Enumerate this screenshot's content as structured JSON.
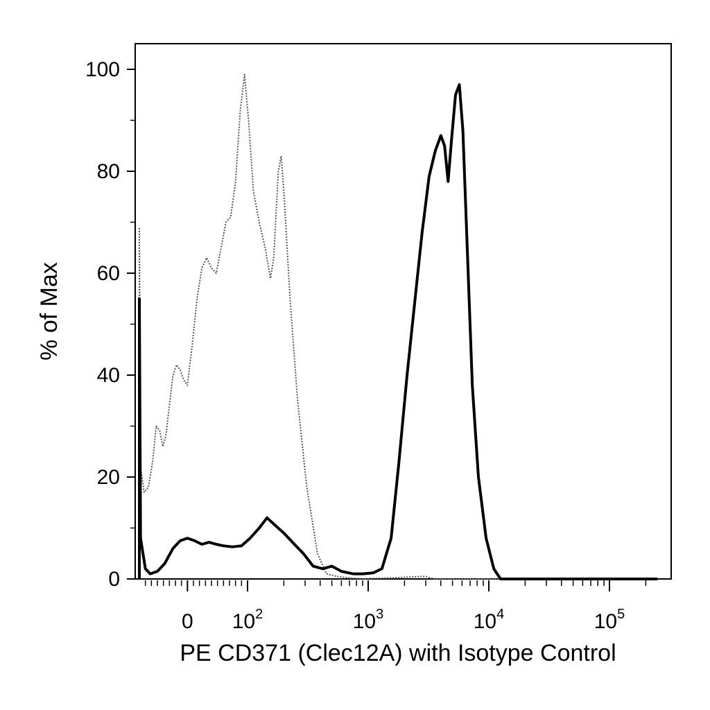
{
  "chart_data": {
    "type": "line",
    "title": "",
    "xlabel": "PE CD371 (Clec12A) with Isotype Control",
    "ylabel": "% of Max",
    "ylim": [
      0,
      100
    ],
    "xscale": "biexponential",
    "xlim": [
      -80,
      250000
    ],
    "grid": false,
    "legend": "none",
    "yticks": [
      {
        "value": 0,
        "label": "0"
      },
      {
        "value": 20,
        "label": "20"
      },
      {
        "value": 40,
        "label": "40"
      },
      {
        "value": 60,
        "label": "60"
      },
      {
        "value": 80,
        "label": "80"
      },
      {
        "value": 100,
        "label": "100"
      }
    ],
    "xticks": [
      {
        "value": 0,
        "base": "0",
        "exp": ""
      },
      {
        "value": 100,
        "base": "10",
        "exp": "2"
      },
      {
        "value": 1000,
        "base": "10",
        "exp": "3"
      },
      {
        "value": 10000,
        "base": "10",
        "exp": "4"
      },
      {
        "value": 100000,
        "base": "10",
        "exp": "5"
      }
    ],
    "series": [
      {
        "style": "dotted",
        "color": "#555555",
        "points": [
          [
            -80,
            0
          ],
          [
            -80,
            69
          ],
          [
            -78,
            22
          ],
          [
            -72,
            17
          ],
          [
            -65,
            18
          ],
          [
            -58,
            23
          ],
          [
            -52,
            30
          ],
          [
            -46,
            29
          ],
          [
            -41,
            26
          ],
          [
            -36,
            28
          ],
          [
            -30,
            34
          ],
          [
            -24,
            40
          ],
          [
            -18,
            42
          ],
          [
            -12,
            41
          ],
          [
            -6,
            39
          ],
          [
            0,
            38
          ],
          [
            8,
            46
          ],
          [
            16,
            55
          ],
          [
            24,
            61
          ],
          [
            32,
            63
          ],
          [
            40,
            61
          ],
          [
            48,
            60
          ],
          [
            56,
            65
          ],
          [
            64,
            70
          ],
          [
            72,
            71
          ],
          [
            80,
            78
          ],
          [
            88,
            92
          ],
          [
            95,
            99
          ],
          [
            102,
            90
          ],
          [
            112,
            76
          ],
          [
            125,
            70
          ],
          [
            140,
            65
          ],
          [
            155,
            59
          ],
          [
            165,
            63
          ],
          [
            180,
            80
          ],
          [
            190,
            83
          ],
          [
            200,
            76
          ],
          [
            225,
            55
          ],
          [
            260,
            35
          ],
          [
            310,
            18
          ],
          [
            380,
            5
          ],
          [
            450,
            1
          ],
          [
            550,
            0.5
          ],
          [
            700,
            0.2
          ],
          [
            900,
            0
          ],
          [
            3000,
            0.5
          ],
          [
            3500,
            0
          ],
          [
            250000,
            0
          ]
        ]
      },
      {
        "style": "solid",
        "color": "#000000",
        "points": [
          [
            -80,
            0
          ],
          [
            -80,
            55
          ],
          [
            -78,
            8
          ],
          [
            -74,
            5
          ],
          [
            -70,
            2
          ],
          [
            -62,
            1
          ],
          [
            -50,
            1.5
          ],
          [
            -38,
            3
          ],
          [
            -24,
            6
          ],
          [
            -12,
            7.5
          ],
          [
            0,
            8
          ],
          [
            12,
            7.5
          ],
          [
            24,
            6.8
          ],
          [
            36,
            7.2
          ],
          [
            48,
            6.8
          ],
          [
            60,
            6.5
          ],
          [
            75,
            6.3
          ],
          [
            90,
            6.5
          ],
          [
            105,
            8
          ],
          [
            125,
            10
          ],
          [
            145,
            12
          ],
          [
            170,
            10.5
          ],
          [
            200,
            9
          ],
          [
            240,
            7
          ],
          [
            290,
            5
          ],
          [
            350,
            2.5
          ],
          [
            420,
            2
          ],
          [
            500,
            2.5
          ],
          [
            600,
            1.5
          ],
          [
            750,
            1
          ],
          [
            900,
            1
          ],
          [
            1100,
            1.2
          ],
          [
            1300,
            2
          ],
          [
            1550,
            8
          ],
          [
            1800,
            23
          ],
          [
            2100,
            40
          ],
          [
            2450,
            55
          ],
          [
            2800,
            68
          ],
          [
            3200,
            79
          ],
          [
            3600,
            84
          ],
          [
            4000,
            87
          ],
          [
            4300,
            85
          ],
          [
            4600,
            78
          ],
          [
            4900,
            86
          ],
          [
            5300,
            95
          ],
          [
            5700,
            97
          ],
          [
            6100,
            88
          ],
          [
            6600,
            66
          ],
          [
            7300,
            38
          ],
          [
            8200,
            20
          ],
          [
            9500,
            8
          ],
          [
            11000,
            2
          ],
          [
            12500,
            0
          ],
          [
            250000,
            0
          ]
        ]
      }
    ]
  }
}
